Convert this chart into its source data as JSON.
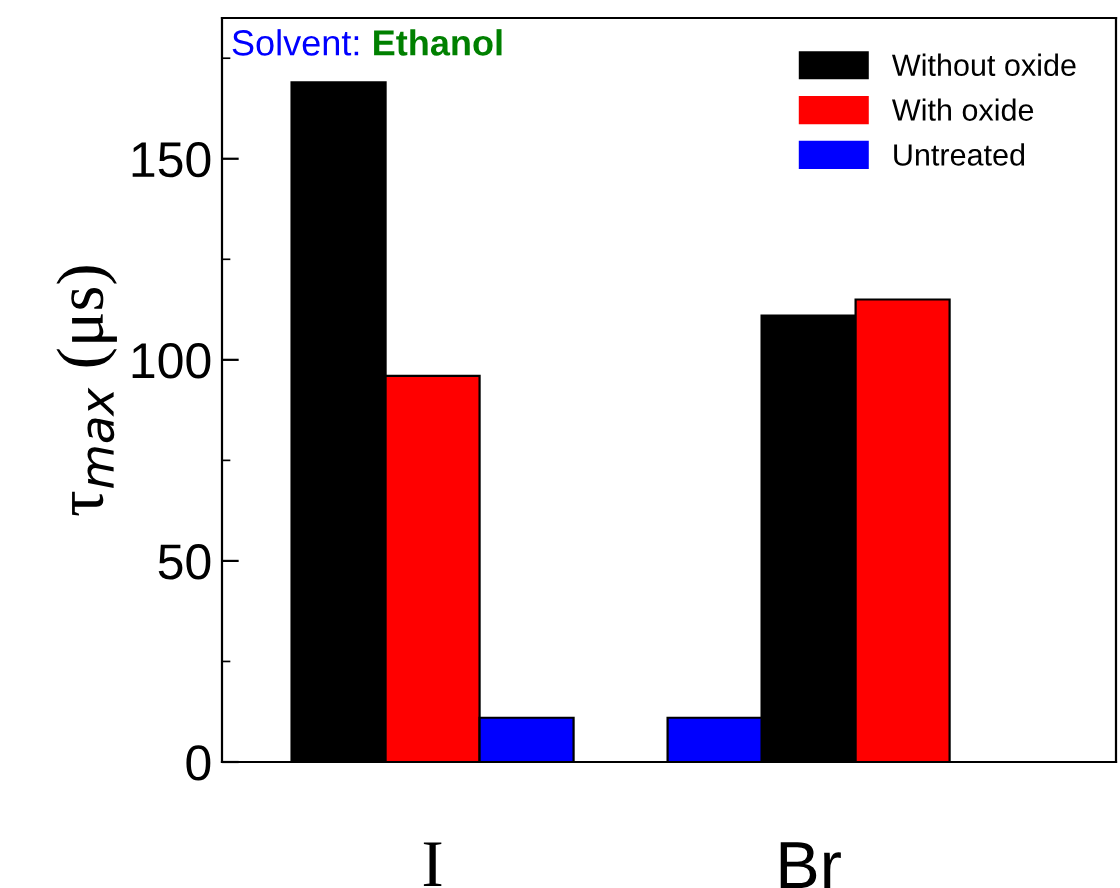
{
  "chart_data": {
    "type": "bar",
    "categories": [
      null,
      "I",
      null,
      null,
      null,
      "Br",
      null
    ],
    "series": [
      {
        "name": "Without oxide",
        "color": "#000000",
        "values": [
          169,
          null,
          null,
          null,
          null,
          111,
          null
        ]
      },
      {
        "name": "With oxide",
        "color": "#ff0000",
        "values": [
          null,
          96,
          null,
          null,
          null,
          null,
          115
        ]
      },
      {
        "name": "Untreated",
        "color": "#0000ff",
        "values": [
          null,
          null,
          11,
          null,
          11,
          null,
          null
        ]
      }
    ],
    "ylabel": "τ$_{max}$ (μs)",
    "ylim": [
      0,
      185
    ],
    "yticks": [
      0,
      50,
      100,
      150
    ],
    "annotations": [
      "Solvent:",
      "Ethanol"
    ],
    "legend": "top right",
    "grid": false
  }
}
